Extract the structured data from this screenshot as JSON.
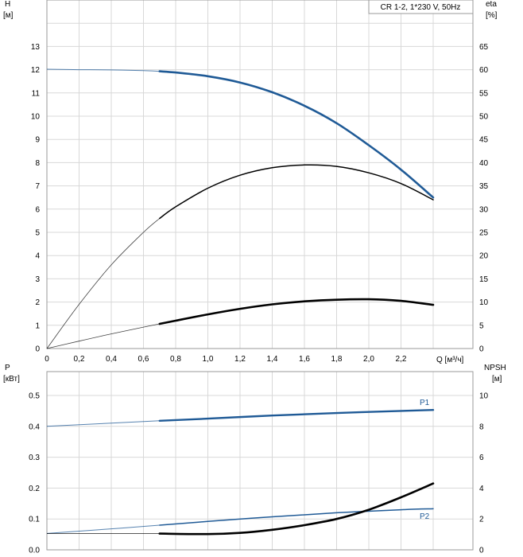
{
  "chart_data": [
    {
      "type": "line",
      "title": "CR 1-2, 1*230 V, 50Hz",
      "y_left_label": "H",
      "y_left_unit": "[м]",
      "y_right_label": "eta",
      "y_right_unit": "[%]",
      "xlabel": "Q [м³/ч]",
      "xlim": [
        0,
        2.4
      ],
      "ylim_left": [
        0,
        14
      ],
      "ylim_right": [
        0,
        70
      ],
      "x_ticks": [
        "0",
        "0,2",
        "0,4",
        "0,6",
        "0,8",
        "1,0",
        "1,2",
        "1,4",
        "1,6",
        "1,8",
        "2,0",
        "2,2"
      ],
      "y_left_ticks": [
        "0",
        "1",
        "2",
        "3",
        "4",
        "5",
        "6",
        "7",
        "8",
        "9",
        "10",
        "11",
        "12",
        "13"
      ],
      "y_right_ticks": [
        "0",
        "5",
        "10",
        "15",
        "20",
        "25",
        "30",
        "35",
        "40",
        "45",
        "50",
        "55",
        "60",
        "65"
      ],
      "grid": true,
      "series": [
        {
          "axis": "left",
          "color": "#1f5a96",
          "operating_range": [
            0.7,
            2.4
          ],
          "x": [
            0,
            0.2,
            0.4,
            0.6,
            0.7,
            0.8,
            1.0,
            1.2,
            1.4,
            1.6,
            1.8,
            2.0,
            2.2,
            2.4
          ],
          "y": [
            12.02,
            12.0,
            11.99,
            11.96,
            11.93,
            11.88,
            11.72,
            11.45,
            11.03,
            10.45,
            9.7,
            8.75,
            7.7,
            6.5
          ]
        },
        {
          "axis": "right",
          "color": "#000000",
          "operating_range": [
            0.7,
            2.4
          ],
          "x": [
            0,
            0.2,
            0.4,
            0.6,
            0.7,
            0.8,
            1.0,
            1.2,
            1.4,
            1.6,
            1.8,
            2.0,
            2.2,
            2.4
          ],
          "y": [
            0,
            9.5,
            18,
            25,
            28,
            30.5,
            34.5,
            37.3,
            38.9,
            39.5,
            39.2,
            37.8,
            35.5,
            32
          ]
        },
        {
          "axis": "left",
          "color": "#000000",
          "operating_range": [
            0.7,
            2.4
          ],
          "x": [
            0,
            0.2,
            0.4,
            0.6,
            0.7,
            0.8,
            1.0,
            1.2,
            1.4,
            1.6,
            1.8,
            2.0,
            2.2,
            2.4
          ],
          "y": [
            0,
            0.32,
            0.63,
            0.92,
            1.06,
            1.2,
            1.47,
            1.71,
            1.9,
            2.03,
            2.1,
            2.12,
            2.05,
            1.88
          ]
        }
      ]
    },
    {
      "type": "line",
      "y_left_label": "P",
      "y_left_unit": "[кВт]",
      "y_right_label": "NPSH",
      "y_right_unit": "[м]",
      "xlim": [
        0,
        2.4
      ],
      "ylim_left": [
        0,
        0.5
      ],
      "ylim_right": [
        0,
        10
      ],
      "y_left_ticks": [
        "0.0",
        "0.1",
        "0.2",
        "0.3",
        "0.4",
        "0.5"
      ],
      "y_right_ticks": [
        "0",
        "2",
        "4",
        "6",
        "8",
        "10"
      ],
      "grid": true,
      "series": [
        {
          "name": "P1",
          "axis": "left",
          "color": "#1f5a96",
          "operating_range": [
            0.7,
            2.4
          ],
          "x": [
            0,
            0.7,
            1.0,
            1.4,
            1.8,
            2.2,
            2.4
          ],
          "y": [
            0.4,
            0.418,
            0.425,
            0.435,
            0.443,
            0.45,
            0.453
          ]
        },
        {
          "name": "P2",
          "axis": "left",
          "color": "#1f5a96",
          "operating_range": [
            0.7,
            2.4
          ],
          "x": [
            0,
            0.4,
            0.7,
            1.0,
            1.4,
            1.8,
            2.2,
            2.4
          ],
          "y": [
            0.053,
            0.068,
            0.08,
            0.092,
            0.107,
            0.12,
            0.13,
            0.133
          ]
        },
        {
          "name": "NPSH",
          "axis": "right",
          "color": "#000000",
          "operating_range": [
            0.7,
            2.4
          ],
          "x": [
            0,
            0.4,
            0.7,
            1.0,
            1.2,
            1.4,
            1.6,
            1.8,
            2.0,
            2.2,
            2.4
          ],
          "y": [
            1.05,
            1.05,
            1.05,
            1.02,
            1.1,
            1.3,
            1.6,
            2.0,
            2.6,
            3.4,
            4.3
          ]
        }
      ]
    }
  ]
}
